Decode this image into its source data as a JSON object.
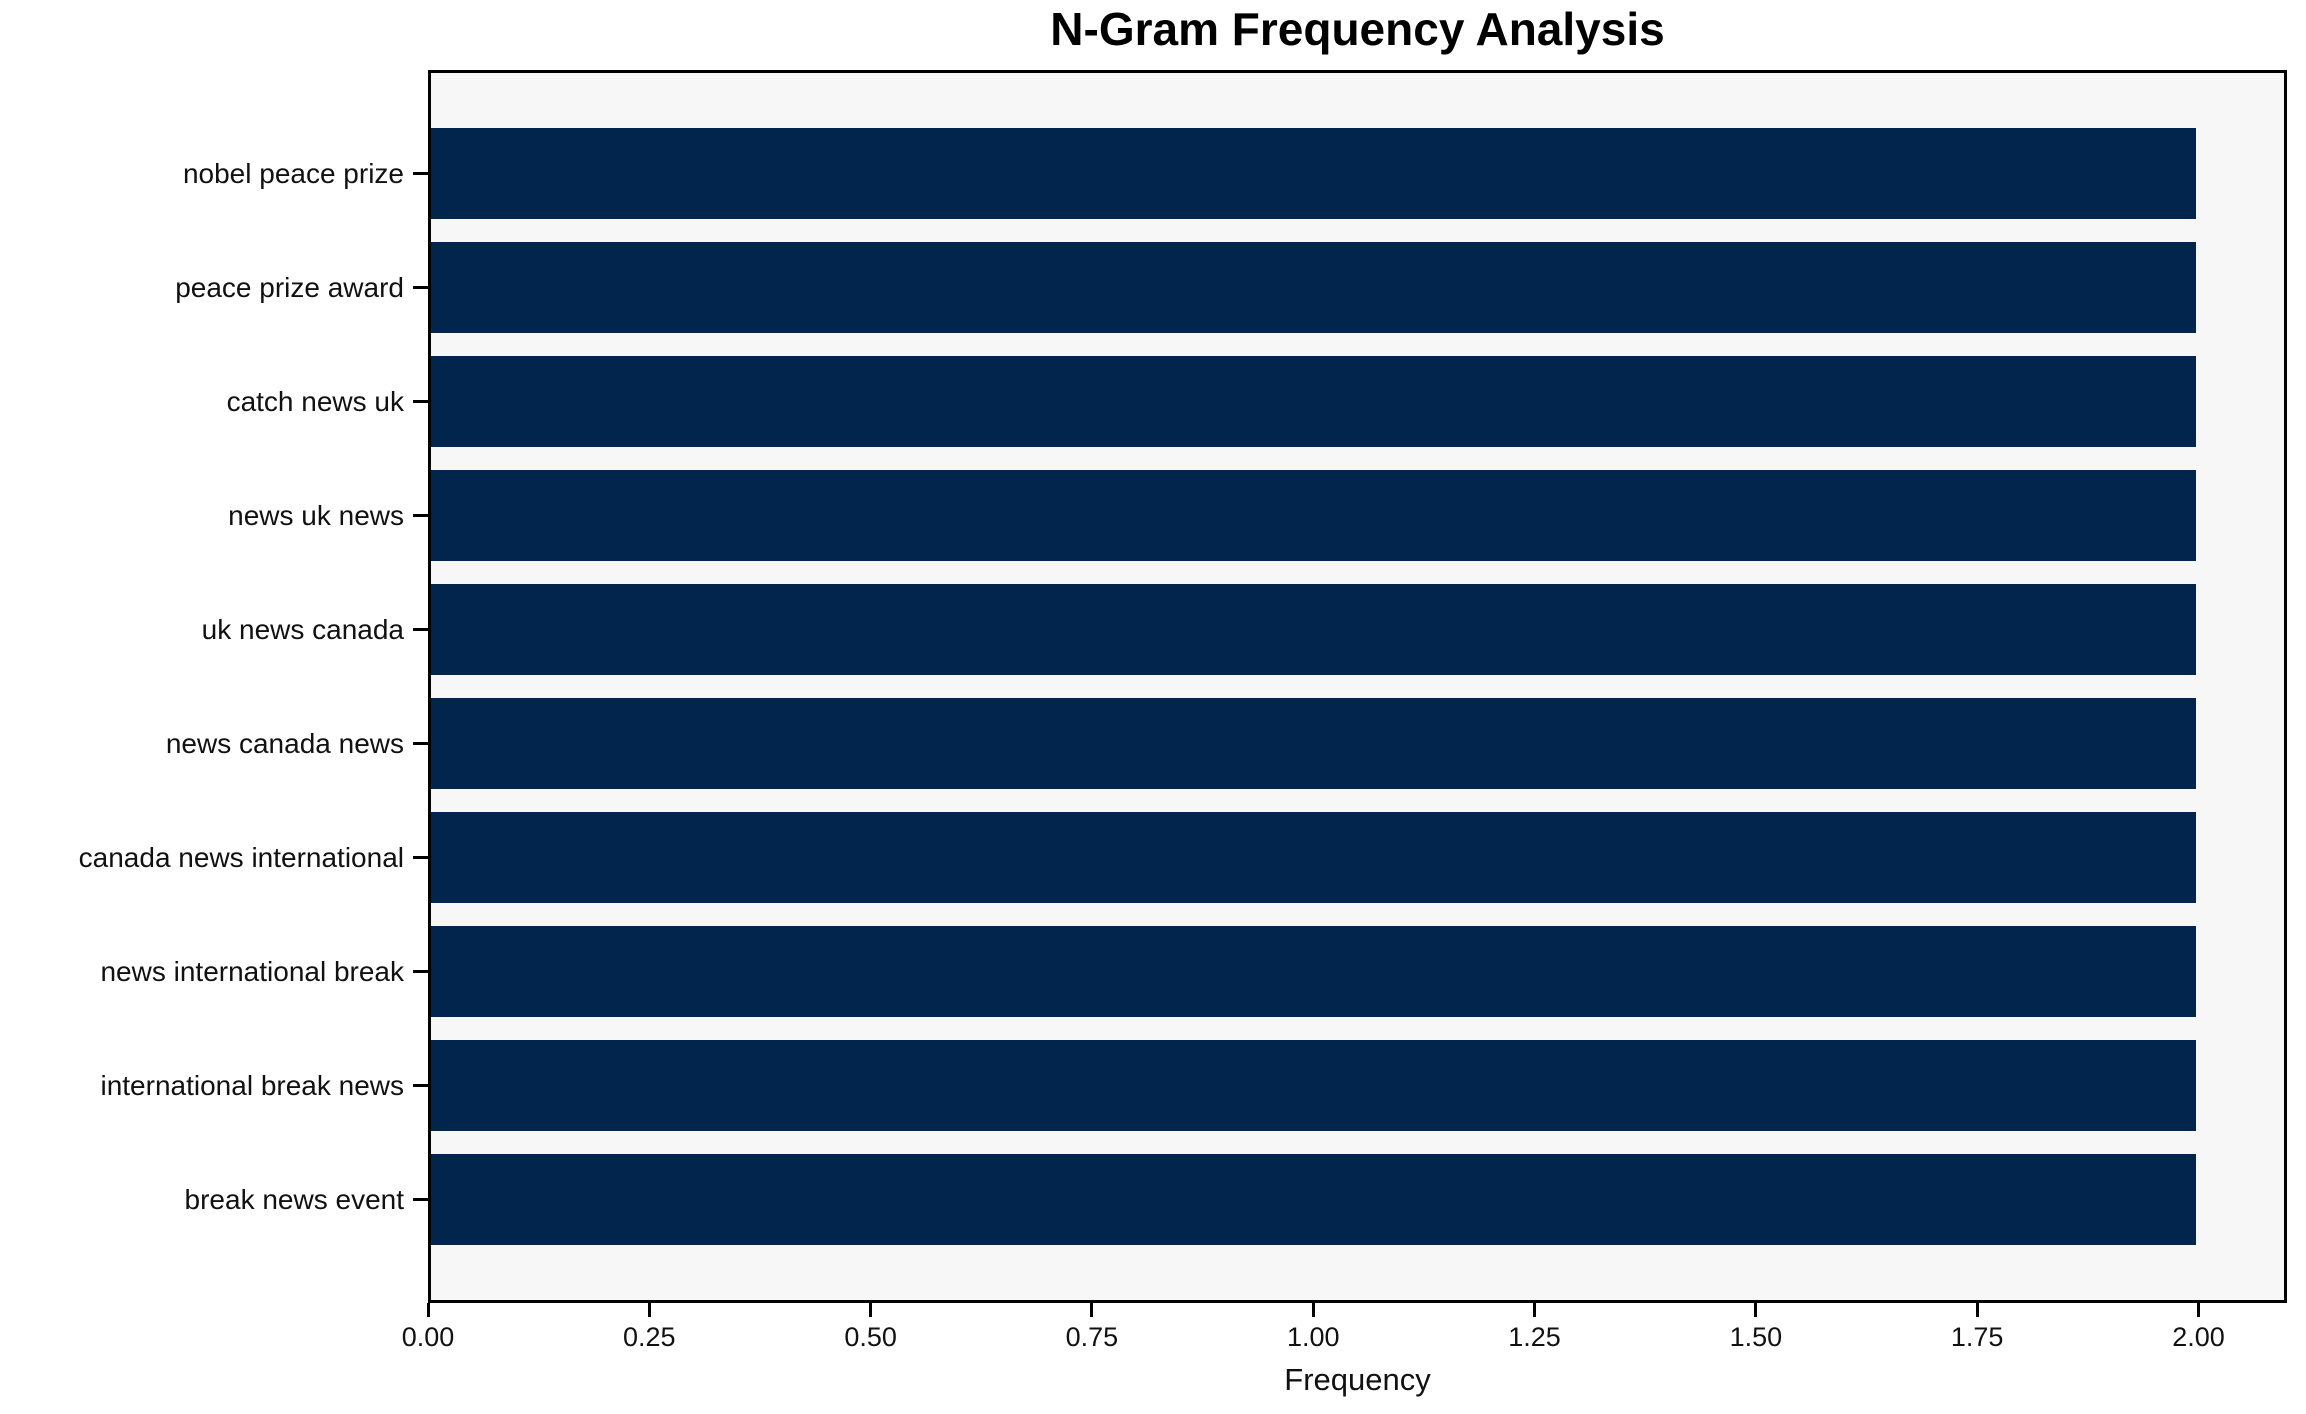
{
  "chart_data": {
    "type": "bar",
    "orientation": "horizontal",
    "title": "N-Gram Frequency Analysis",
    "xlabel": "Frequency",
    "ylabel": "",
    "categories": [
      "nobel peace prize",
      "peace prize award",
      "catch news uk",
      "news uk news",
      "uk news canada",
      "news canada news",
      "canada news international",
      "news international break",
      "international break news",
      "break news event"
    ],
    "values": [
      2,
      2,
      2,
      2,
      2,
      2,
      2,
      2,
      2,
      2
    ],
    "xtick_labels": [
      "0.00",
      "0.25",
      "0.50",
      "0.75",
      "1.00",
      "1.25",
      "1.50",
      "1.75",
      "2.00"
    ],
    "xtick_values": [
      0,
      0.25,
      0.5,
      0.75,
      1.0,
      1.25,
      1.5,
      1.75,
      2.0
    ],
    "xlim": [
      0,
      2.1
    ],
    "grid": false,
    "legend": null,
    "bar_color": "#02254e",
    "plot_bg_color": "#f7f7f7",
    "figure_bg_color": "#ffffff",
    "axis_color": "#000000"
  }
}
